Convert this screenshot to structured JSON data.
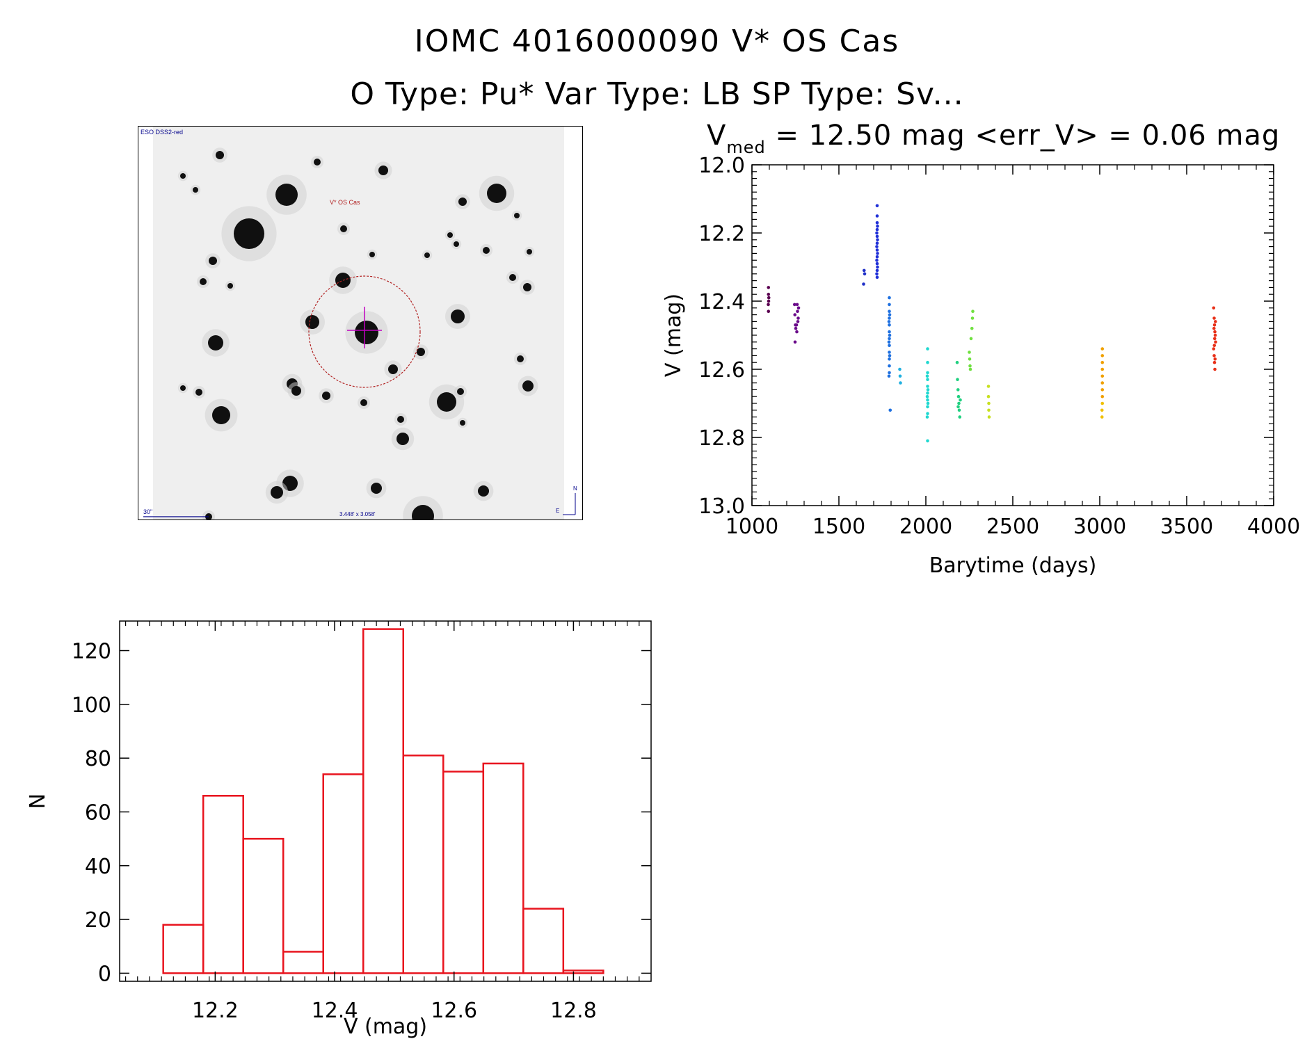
{
  "header": {
    "line1": "IOMC 4016000090    V* OS Cas",
    "line2": "O Type: Pu*  Var Type: LB  SP Type: Sv..."
  },
  "finder_chart": {
    "survey_label": "ESO DSS2-red",
    "target_label": "V* OS Cas",
    "scale_label": "30\"",
    "fov_label": "3.448' x 3.058'",
    "north_label": "N",
    "east_label": "E",
    "colors": {
      "label": "#00008b",
      "target_label": "#b22222",
      "circle": "#b22222",
      "crosshair": "#c000c0"
    }
  },
  "chart_data": [
    {
      "type": "scatter",
      "title_prefix": "V",
      "title_sub": "med",
      "title_rest": " = 12.50 mag <err_V> = 0.06 mag",
      "xlabel": "Barytime (days)",
      "ylabel": "V (mag)",
      "xlim": [
        1000,
        4000
      ],
      "ylim": [
        13.0,
        12.0
      ],
      "y_inverted": true,
      "xticks": [
        1000,
        1500,
        2000,
        2500,
        3000,
        3500,
        4000
      ],
      "yticks": [
        12.0,
        12.2,
        12.4,
        12.6,
        12.8,
        13.0
      ],
      "ytick_labels": [
        "12.0",
        "12.2",
        "12.4",
        "12.6",
        "12.8",
        "13.0"
      ],
      "points": [
        [
          1095,
          12.36,
          "#5a0050"
        ],
        [
          1095,
          12.38,
          "#5a0050"
        ],
        [
          1096,
          12.4,
          "#5a0050"
        ],
        [
          1094,
          12.41,
          "#5a0050"
        ],
        [
          1095,
          12.43,
          "#5a0050"
        ],
        [
          1097,
          12.39,
          "#5a0050"
        ],
        [
          1245,
          12.41,
          "#6a0a8a"
        ],
        [
          1247,
          12.44,
          "#6a0a8a"
        ],
        [
          1250,
          12.47,
          "#6a0a8a"
        ],
        [
          1252,
          12.48,
          "#6a0a8a"
        ],
        [
          1248,
          12.52,
          "#6a0a8a"
        ],
        [
          1260,
          12.41,
          "#6a0a8a"
        ],
        [
          1262,
          12.43,
          "#6a0a8a"
        ],
        [
          1264,
          12.46,
          "#6a0a8a"
        ],
        [
          1266,
          12.45,
          "#6a0a8a"
        ],
        [
          1268,
          12.42,
          "#6a0a8a"
        ],
        [
          1258,
          12.49,
          "#6a0a8a"
        ],
        [
          1256,
          12.47,
          "#6a0a8a"
        ],
        [
          1645,
          12.31,
          "#2030c8"
        ],
        [
          1648,
          12.32,
          "#2030c8"
        ],
        [
          1642,
          12.35,
          "#2030c8"
        ],
        [
          1720,
          12.12,
          "#2030d8"
        ],
        [
          1720,
          12.15,
          "#2030d8"
        ],
        [
          1720,
          12.17,
          "#2030d8"
        ],
        [
          1720,
          12.19,
          "#2030d8"
        ],
        [
          1720,
          12.21,
          "#2030d8"
        ],
        [
          1720,
          12.23,
          "#2030d8"
        ],
        [
          1720,
          12.25,
          "#2030d8"
        ],
        [
          1720,
          12.27,
          "#2030d8"
        ],
        [
          1720,
          12.29,
          "#2030d8"
        ],
        [
          1720,
          12.31,
          "#2030d8"
        ],
        [
          1720,
          12.33,
          "#2030d8"
        ],
        [
          1722,
          12.18,
          "#2030d8"
        ],
        [
          1722,
          12.22,
          "#2030d8"
        ],
        [
          1722,
          12.26,
          "#2030d8"
        ],
        [
          1722,
          12.3,
          "#2030d8"
        ],
        [
          1718,
          12.2,
          "#2030d8"
        ],
        [
          1718,
          12.24,
          "#2030d8"
        ],
        [
          1718,
          12.28,
          "#2030d8"
        ],
        [
          1718,
          12.32,
          "#2030d8"
        ],
        [
          1790,
          12.39,
          "#1e70e0"
        ],
        [
          1790,
          12.41,
          "#1e70e0"
        ],
        [
          1790,
          12.43,
          "#1e70e0"
        ],
        [
          1790,
          12.45,
          "#1e70e0"
        ],
        [
          1790,
          12.47,
          "#1e70e0"
        ],
        [
          1790,
          12.49,
          "#1e70e0"
        ],
        [
          1790,
          12.51,
          "#1e70e0"
        ],
        [
          1790,
          12.53,
          "#1e70e0"
        ],
        [
          1790,
          12.55,
          "#1e70e0"
        ],
        [
          1790,
          12.57,
          "#1e70e0"
        ],
        [
          1790,
          12.59,
          "#1e70e0"
        ],
        [
          1790,
          12.61,
          "#1e70e0"
        ],
        [
          1792,
          12.44,
          "#1e70e0"
        ],
        [
          1792,
          12.5,
          "#1e70e0"
        ],
        [
          1792,
          12.56,
          "#1e70e0"
        ],
        [
          1788,
          12.46,
          "#1e70e0"
        ],
        [
          1788,
          12.52,
          "#1e70e0"
        ],
        [
          1788,
          12.62,
          "#1e70e0"
        ],
        [
          1795,
          12.72,
          "#1e70e0"
        ],
        [
          1850,
          12.6,
          "#20b0e0"
        ],
        [
          1852,
          12.62,
          "#20b0e0"
        ],
        [
          1854,
          12.64,
          "#20b0e0"
        ],
        [
          2010,
          12.54,
          "#20d8d0"
        ],
        [
          2010,
          12.58,
          "#20d8d0"
        ],
        [
          2010,
          12.61,
          "#20d8d0"
        ],
        [
          2010,
          12.63,
          "#20d8d0"
        ],
        [
          2010,
          12.65,
          "#20d8d0"
        ],
        [
          2010,
          12.67,
          "#20d8d0"
        ],
        [
          2010,
          12.69,
          "#20d8d0"
        ],
        [
          2010,
          12.71,
          "#20d8d0"
        ],
        [
          2010,
          12.73,
          "#20d8d0"
        ],
        [
          2012,
          12.66,
          "#20d8d0"
        ],
        [
          2012,
          12.7,
          "#20d8d0"
        ],
        [
          2008,
          12.62,
          "#20d8d0"
        ],
        [
          2008,
          12.68,
          "#20d8d0"
        ],
        [
          2008,
          12.74,
          "#20d8d0"
        ],
        [
          2010,
          12.81,
          "#20d8d0"
        ],
        [
          2180,
          12.58,
          "#20d080"
        ],
        [
          2182,
          12.63,
          "#20d080"
        ],
        [
          2185,
          12.66,
          "#20d080"
        ],
        [
          2188,
          12.68,
          "#20d080"
        ],
        [
          2190,
          12.7,
          "#20d080"
        ],
        [
          2192,
          12.72,
          "#20d080"
        ],
        [
          2195,
          12.74,
          "#20d080"
        ],
        [
          2186,
          12.71,
          "#20d080"
        ],
        [
          2198,
          12.69,
          "#20d080"
        ],
        [
          2250,
          12.55,
          "#70e040"
        ],
        [
          2252,
          12.57,
          "#70e040"
        ],
        [
          2254,
          12.59,
          "#70e040"
        ],
        [
          2256,
          12.6,
          "#70e040"
        ],
        [
          2265,
          12.48,
          "#70e040"
        ],
        [
          2268,
          12.45,
          "#70e040"
        ],
        [
          2270,
          12.43,
          "#70e040"
        ],
        [
          2260,
          12.51,
          "#70e040"
        ],
        [
          2360,
          12.65,
          "#c8e020"
        ],
        [
          2360,
          12.68,
          "#c8e020"
        ],
        [
          2362,
          12.7,
          "#c8e020"
        ],
        [
          2362,
          12.72,
          "#c8e020"
        ],
        [
          2364,
          12.74,
          "#c8e020"
        ],
        [
          3015,
          12.54,
          "#f0a000"
        ],
        [
          3015,
          12.56,
          "#f0a000"
        ],
        [
          3015,
          12.58,
          "#f0a000"
        ],
        [
          3015,
          12.6,
          "#f0a000"
        ],
        [
          3015,
          12.62,
          "#f0a000"
        ],
        [
          3015,
          12.64,
          "#f0a000"
        ],
        [
          3015,
          12.66,
          "#f0a000"
        ],
        [
          3015,
          12.68,
          "#f0a000"
        ],
        [
          3015,
          12.7,
          "#f0c000"
        ],
        [
          3013,
          12.72,
          "#f0c000"
        ],
        [
          3013,
          12.74,
          "#f0c000"
        ],
        [
          3655,
          12.42,
          "#e83018"
        ],
        [
          3658,
          12.45,
          "#e83018"
        ],
        [
          3660,
          12.47,
          "#e83018"
        ],
        [
          3662,
          12.49,
          "#e83018"
        ],
        [
          3664,
          12.5,
          "#e83018"
        ],
        [
          3666,
          12.52,
          "#e83018"
        ],
        [
          3655,
          12.54,
          "#e83018"
        ],
        [
          3658,
          12.56,
          "#e83018"
        ],
        [
          3660,
          12.58,
          "#e83018"
        ],
        [
          3662,
          12.6,
          "#e83018"
        ],
        [
          3657,
          12.48,
          "#e83018"
        ],
        [
          3661,
          12.51,
          "#e83018"
        ],
        [
          3665,
          12.46,
          "#e83018"
        ],
        [
          3659,
          12.53,
          "#e83018"
        ],
        [
          3663,
          12.57,
          "#e83018"
        ]
      ]
    },
    {
      "type": "bar",
      "title": "",
      "xlabel": "V (mag)",
      "ylabel": "N",
      "xlim": [
        12.04,
        12.93
      ],
      "ylim": [
        -3,
        131
      ],
      "xticks": [
        12.2,
        12.4,
        12.6,
        12.8
      ],
      "xtick_labels": [
        "12.2",
        "12.4",
        "12.6",
        "12.8"
      ],
      "yticks": [
        0,
        20,
        40,
        60,
        80,
        100,
        120
      ],
      "ytick_labels": [
        "0",
        "20",
        "40",
        "60",
        "80",
        "100",
        "120"
      ],
      "bin_edges": [
        12.113,
        12.18,
        12.247,
        12.314,
        12.381,
        12.448,
        12.515,
        12.582,
        12.649,
        12.716,
        12.783,
        12.85
      ],
      "values": [
        18,
        66,
        50,
        8,
        74,
        128,
        81,
        75,
        78,
        24,
        1
      ],
      "bar_color": "#e8141e"
    }
  ]
}
